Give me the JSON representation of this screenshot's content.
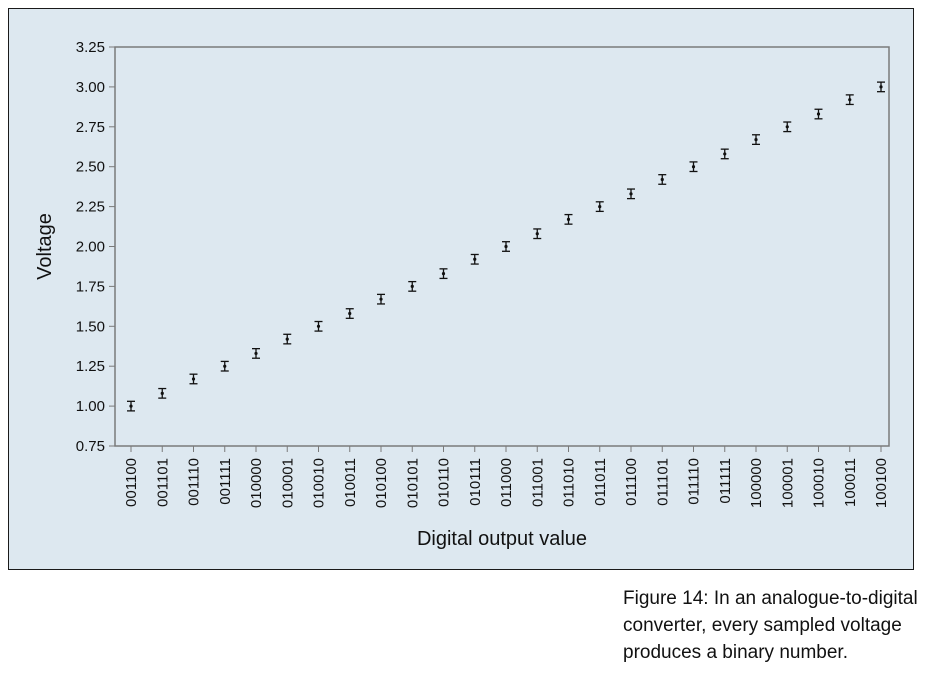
{
  "chart_data": {
    "type": "scatter",
    "title": "",
    "xlabel": "Digital output value",
    "ylabel": "Voltage",
    "ylim": [
      0.75,
      3.25
    ],
    "yticks": [
      "0.75",
      "1.00",
      "1.25",
      "1.50",
      "1.75",
      "2.00",
      "2.25",
      "2.50",
      "2.75",
      "3.00",
      "3.25"
    ],
    "grid": false,
    "legend": "none",
    "error_bars": true,
    "categories": [
      "001100",
      "001101",
      "001110",
      "001111",
      "010000",
      "010001",
      "010010",
      "010011",
      "010100",
      "010101",
      "010110",
      "010111",
      "011000",
      "011001",
      "011010",
      "011011",
      "011100",
      "011101",
      "011110",
      "011111",
      "100000",
      "100001",
      "100010",
      "100011",
      "100100"
    ],
    "values": [
      1.0,
      1.08,
      1.17,
      1.25,
      1.33,
      1.42,
      1.5,
      1.58,
      1.67,
      1.75,
      1.83,
      1.92,
      2.0,
      2.08,
      2.17,
      2.25,
      2.33,
      2.42,
      2.5,
      2.58,
      2.67,
      2.75,
      2.83,
      2.92,
      3.0
    ],
    "error": 0.03,
    "colors": {
      "background": "#dde8f0",
      "marker": "#111111",
      "frame": "#7a7a7a"
    }
  },
  "caption": {
    "lines": [
      "Figure 14: In an analogue-to-digital",
      "converter, every sampled voltage",
      "produces a binary number."
    ]
  }
}
